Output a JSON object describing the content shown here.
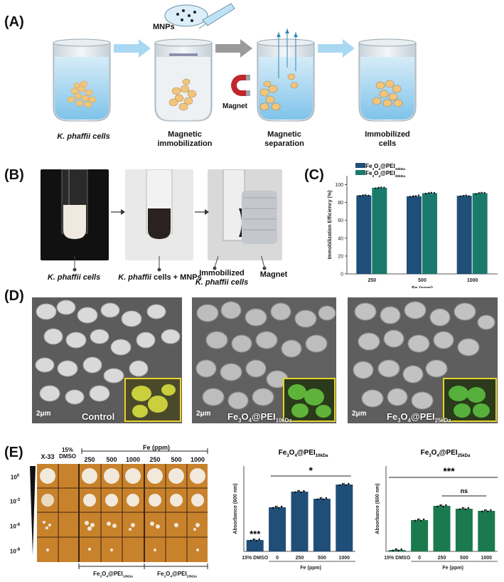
{
  "panels": {
    "a": "(A)",
    "b": "(B)",
    "c": "(C)",
    "d": "(D)",
    "e": "(E)"
  },
  "panelA": {
    "mnps": "MNPs",
    "magnet": "Magnet",
    "step1": "K. phaffii cells",
    "step2a": "Magnetic",
    "step2b": "immobilization",
    "step3a": "Magnetic",
    "step3b": "separation",
    "step4a": "Immobilized",
    "step4b": "cells"
  },
  "panelB": {
    "cap1": "K. phaffii cells",
    "cap2a": "K. phaffii",
    "cap2b": " cells + MNPs",
    "cap3a": "Immobilized",
    "cap3b": "K. phaffii cells",
    "cap4": "Magnet"
  },
  "panelD": {
    "scale": "2μm",
    "control": "Control",
    "s10a": "Fe",
    "s10b": "3",
    "s10c": "O",
    "s10d": "4",
    "s10e": "@PEI",
    "s10f": "10kDa",
    "s25f": "25kDa"
  },
  "panelE": {
    "x33": "X-33",
    "dmso1": "15%",
    "dmso2": "DMSO",
    "fe_ppm": "Fe  (ppm)",
    "conc": [
      "250",
      "500",
      "1000",
      "250",
      "500",
      "1000"
    ],
    "dil": [
      "10",
      "10",
      "10",
      "10"
    ],
    "dil_exp": [
      "0",
      "-3",
      "-6",
      "-9"
    ],
    "bottom10": "Fe3O4@PEI10kDa",
    "bottom25": "Fe3O4@PEI25kDa"
  },
  "chart_data": [
    {
      "type": "bar",
      "id": "C",
      "categories": [
        "250",
        "500",
        "1000"
      ],
      "series": [
        {
          "name": "Fe3O4@PEI10kDa",
          "color": "#1f4e79",
          "values": [
            88,
            87,
            87.5
          ],
          "points": [
            [
              87.5,
              88,
              88.3,
              87.8
            ],
            [
              86.5,
              87,
              87.3,
              88
            ],
            [
              87,
              87.5,
              88,
              87.2
            ]
          ]
        },
        {
          "name": "Fe3O4@PEI25kDa",
          "color": "#1a7a6b",
          "values": [
            96.5,
            90.5,
            90.5
          ],
          "points": [
            [
              96,
              96.5,
              97,
              96.8
            ],
            [
              90,
              90.5,
              91,
              90.8
            ],
            [
              89.5,
              90.5,
              91,
              90.8
            ]
          ]
        }
      ],
      "xlabel": "Fe (ppm)",
      "ylabel": "Immobilization Efficiency (%)",
      "yticks": [
        "0",
        "20",
        "40",
        "60",
        "80",
        "100"
      ],
      "ylim": [
        0,
        110
      ]
    },
    {
      "type": "bar",
      "id": "E1",
      "title": "Fe3O4@PEI10kDa",
      "categories": [
        "15% DMSO",
        "0",
        "250",
        "500",
        "1000"
      ],
      "values": [
        0.08,
        0.31,
        0.42,
        0.37,
        0.47
      ],
      "color": "#1f4e79",
      "xlabel": "Fe (ppm)",
      "ylabel": "Absorbance (600 nm)",
      "ylim": [
        0,
        0.6
      ],
      "sig_dmso": "***",
      "sig_bracket": "*"
    },
    {
      "type": "bar",
      "id": "E2",
      "title": "Fe3O4@PEI25kDa",
      "categories": [
        "15% DMSO",
        "0",
        "250",
        "500",
        "1000"
      ],
      "values": [
        0.01,
        0.22,
        0.32,
        0.3,
        0.285
      ],
      "color": "#1a7a4e",
      "xlabel": "Fe (ppm)",
      "ylabel": "Absorbance (600 nm)",
      "ylim": [
        0,
        0.6
      ],
      "sig_top": "***",
      "sig_ns": "ns"
    }
  ]
}
